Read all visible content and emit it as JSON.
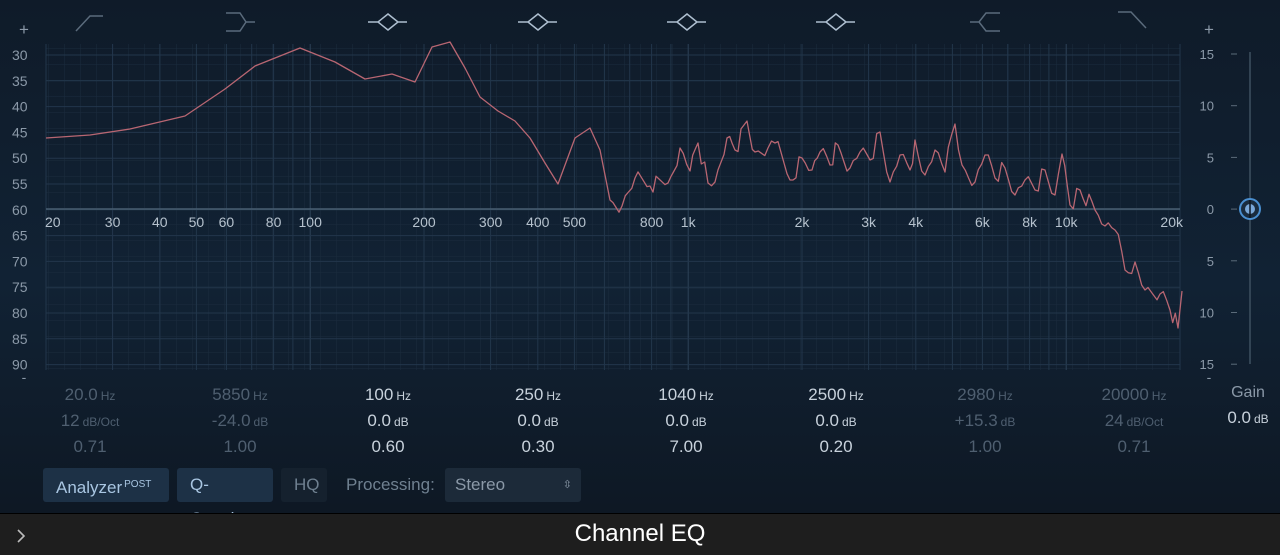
{
  "graph": {
    "left_scale": [
      "30",
      "35",
      "40",
      "45",
      "50",
      "55",
      "60",
      "65",
      "70",
      "75",
      "80",
      "85",
      "90"
    ],
    "right_scale": [
      "15",
      "10",
      "5",
      "0",
      "5",
      "10",
      "15"
    ],
    "freq_labels": [
      "20",
      "30",
      "40",
      "50",
      "60",
      "80",
      "100",
      "200",
      "300",
      "400",
      "500",
      "800",
      "1k",
      "2k",
      "3k",
      "4k",
      "6k",
      "8k",
      "10k",
      "20k"
    ],
    "plus_left": "+",
    "minus_left": "-",
    "plus_right": "+",
    "minus_right": "-",
    "spectrum_peak_color": "#b86672"
  },
  "bands": [
    {
      "freq": "20.0",
      "freq_unit": "Hz",
      "gain": "12",
      "gain_unit": "dB/Oct",
      "q": "0.71",
      "active": false,
      "icon": "low-cut-icon"
    },
    {
      "freq": "5850",
      "freq_unit": "Hz",
      "gain": "-24.0",
      "gain_unit": "dB",
      "q": "1.00",
      "active": false,
      "icon": "low-shelf-icon"
    },
    {
      "freq": "100",
      "freq_unit": "Hz",
      "gain": "0.0",
      "gain_unit": "dB",
      "q": "0.60",
      "active": true,
      "icon": "bell-icon"
    },
    {
      "freq": "250",
      "freq_unit": "Hz",
      "gain": "0.0",
      "gain_unit": "dB",
      "q": "0.30",
      "active": true,
      "icon": "bell-icon"
    },
    {
      "freq": "1040",
      "freq_unit": "Hz",
      "gain": "0.0",
      "gain_unit": "dB",
      "q": "7.00",
      "active": true,
      "icon": "bell-icon"
    },
    {
      "freq": "2500",
      "freq_unit": "Hz",
      "gain": "0.0",
      "gain_unit": "dB",
      "q": "0.20",
      "active": true,
      "icon": "bell-icon"
    },
    {
      "freq": "2980",
      "freq_unit": "Hz",
      "gain": "+15.3",
      "gain_unit": "dB",
      "q": "1.00",
      "active": false,
      "icon": "high-shelf-icon"
    },
    {
      "freq": "20000",
      "freq_unit": "Hz",
      "gain": "24",
      "gain_unit": "dB/Oct",
      "q": "0.71",
      "active": false,
      "icon": "high-cut-icon"
    }
  ],
  "gain": {
    "label": "Gain",
    "value": "0.0",
    "unit": "dB"
  },
  "toolbar": {
    "analyzer_label": "Analyzer",
    "analyzer_badge": "POST",
    "qcouple_label": "Q-Couple",
    "hq_label": "HQ",
    "processing_label": "Processing:",
    "processing_value": "Stereo"
  },
  "footer": {
    "title": "Channel EQ"
  }
}
